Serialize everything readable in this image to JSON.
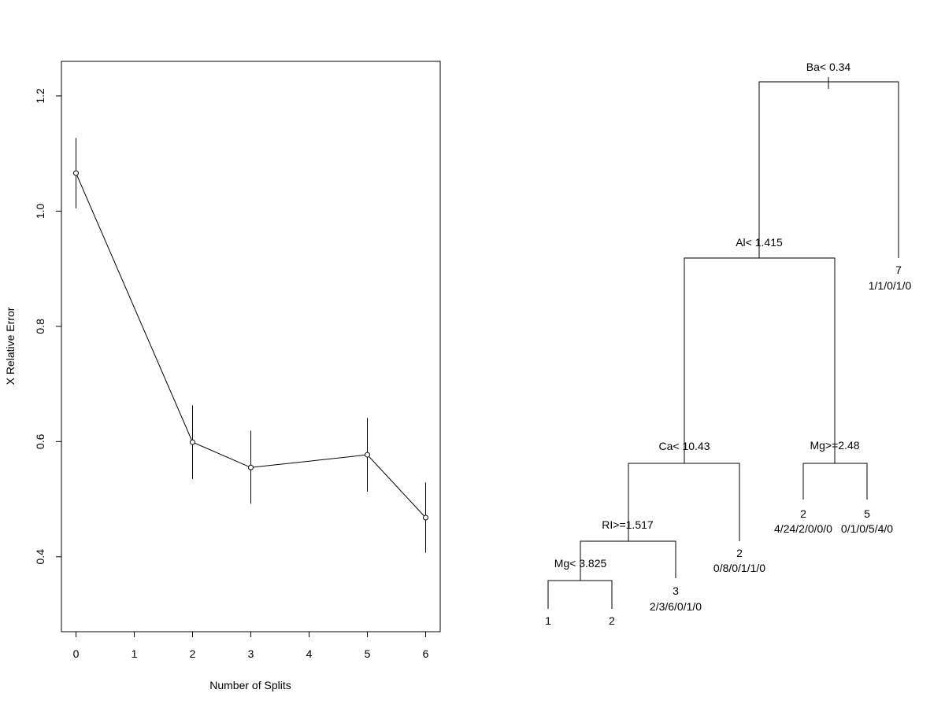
{
  "chart_data": [
    {
      "type": "line",
      "xlabel": "Number of Splits",
      "ylabel": "X Relative Error",
      "xlim": [
        -0.25,
        6.25
      ],
      "ylim": [
        0.27,
        1.26
      ],
      "x_ticks": [
        0,
        1,
        2,
        3,
        4,
        5,
        6
      ],
      "y_ticks": [
        0.4,
        0.6,
        0.8,
        1.0,
        1.2
      ],
      "y_tick_labels": [
        "0.4",
        "0.6",
        "0.8",
        "1.0",
        "1.2"
      ],
      "x": [
        0,
        2,
        3,
        5,
        6
      ],
      "values": [
        1.066,
        0.599,
        0.555,
        0.577,
        0.468
      ],
      "error_low": [
        1.005,
        0.535,
        0.492,
        0.513,
        0.407
      ],
      "error_high": [
        1.127,
        0.663,
        0.619,
        0.641,
        0.529
      ],
      "grid": false,
      "line_color": "#000000"
    },
    {
      "type": "diagram",
      "nodes": [
        {
          "id": "root",
          "split": "Ba< 0.34"
        },
        {
          "id": "n2",
          "split": "Al< 1.415"
        },
        {
          "id": "n3",
          "leaf": true,
          "class": "7",
          "counts": "1/1/0/1/0"
        },
        {
          "id": "n4",
          "split": "Ca< 10.43"
        },
        {
          "id": "n5",
          "split": "Mg>=2.48"
        },
        {
          "id": "n8",
          "split": "RI>=1.517"
        },
        {
          "id": "n9",
          "leaf": true,
          "class": "2",
          "counts": "0/8/0/1/1/0"
        },
        {
          "id": "n10",
          "leaf": true,
          "class": "2",
          "counts": "4/24/2/0/0/0"
        },
        {
          "id": "n11",
          "leaf": true,
          "class": "5",
          "counts": "0/1/0/5/4/0"
        },
        {
          "id": "n16",
          "split": "Mg< 3.825"
        },
        {
          "id": "n17",
          "leaf": true,
          "class": "3",
          "counts": "2/3/6/0/1/0"
        },
        {
          "id": "n32",
          "leaf": true,
          "class": "1",
          "counts": ""
        },
        {
          "id": "n33",
          "leaf": true,
          "class": "2",
          "counts": ""
        }
      ]
    }
  ]
}
